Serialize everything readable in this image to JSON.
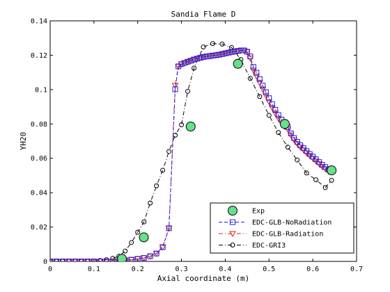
{
  "chart_data": {
    "type": "line",
    "title": "Sandia Flame D",
    "xlabel": "Axial coordinate (m)",
    "ylabel": "YH20",
    "xlim": [
      0,
      0.7
    ],
    "ylim": [
      0,
      0.14
    ],
    "xticks": [
      0,
      0.1,
      0.2,
      0.3,
      0.4,
      0.5,
      0.6,
      0.7
    ],
    "xtick_labels": [
      "0",
      "0.1",
      "0.2",
      "0.3",
      "0.4",
      "0.5",
      "0.6",
      "0.7"
    ],
    "yticks": [
      0,
      0.02,
      0.04,
      0.06,
      0.08,
      0.1,
      0.12,
      0.14
    ],
    "ytick_labels": [
      "0",
      "0.02",
      "0.04",
      "0.06",
      "0.08",
      "0.1",
      "0.12",
      "0.14"
    ],
    "grid": false,
    "legend_position": "bottom-right",
    "series": [
      {
        "name": "Exp",
        "style": "markers-only",
        "marker": "circle-filled",
        "color": "#000000",
        "fill": "#66e08a",
        "x": [
          0.164,
          0.214,
          0.321,
          0.429,
          0.536,
          0.643
        ],
        "y": [
          0.0015,
          0.014,
          0.0785,
          0.115,
          0.08,
          0.053
        ]
      },
      {
        "name": "EDC-GLB-NoRadiation",
        "style": "dashed",
        "marker": "square",
        "color": "#1f1fd8",
        "x": [
          0.0,
          0.0143,
          0.0286,
          0.0429,
          0.0571,
          0.0714,
          0.0857,
          0.1,
          0.1143,
          0.1286,
          0.1429,
          0.1571,
          0.1714,
          0.1857,
          0.2,
          0.2143,
          0.2286,
          0.2429,
          0.2571,
          0.2714,
          0.2857,
          0.2929,
          0.3,
          0.3071,
          0.3143,
          0.3214,
          0.3286,
          0.3357,
          0.3429,
          0.35,
          0.3571,
          0.3643,
          0.3714,
          0.3786,
          0.3857,
          0.3929,
          0.4,
          0.4071,
          0.4143,
          0.4214,
          0.4286,
          0.4357,
          0.4429,
          0.45,
          0.4571,
          0.4643,
          0.4714,
          0.4786,
          0.4857,
          0.4929,
          0.5,
          0.5071,
          0.5143,
          0.5214,
          0.5286,
          0.5357,
          0.5429,
          0.55,
          0.5571,
          0.5643,
          0.5714,
          0.5786,
          0.5857,
          0.5929,
          0.6,
          0.6071,
          0.6143,
          0.6214,
          0.6286,
          0.6357,
          0.6429
        ],
        "y": [
          0.0,
          0.0,
          0.0,
          0.0,
          0.0,
          0.0,
          0.0,
          0.0,
          0.0,
          0.0,
          0.0,
          0.0002,
          0.0006,
          0.001,
          0.0015,
          0.002,
          0.003,
          0.0046,
          0.0083,
          0.0193,
          0.1002,
          0.1135,
          0.1148,
          0.1155,
          0.1162,
          0.1168,
          0.1175,
          0.118,
          0.1185,
          0.119,
          0.1193,
          0.1195,
          0.1198,
          0.12,
          0.1203,
          0.1207,
          0.1211,
          0.1215,
          0.1219,
          0.1222,
          0.1225,
          0.1228,
          0.1228,
          0.122,
          0.1193,
          0.1132,
          0.1098,
          0.1061,
          0.1023,
          0.0985,
          0.095,
          0.0915,
          0.0882,
          0.0852,
          0.0825,
          0.0798,
          0.0782,
          0.0745,
          0.0718,
          0.0696,
          0.0676,
          0.0659,
          0.0642,
          0.0625,
          0.061,
          0.0594,
          0.0578,
          0.0562,
          0.0549,
          0.0535,
          0.0527
        ]
      },
      {
        "name": "EDC-GLB-Radiation",
        "style": "dashdot",
        "marker": "triangle-down",
        "color": "#e81818",
        "x": [
          0.0,
          0.0143,
          0.0286,
          0.0429,
          0.0571,
          0.0714,
          0.0857,
          0.1,
          0.1143,
          0.1286,
          0.1429,
          0.1571,
          0.1714,
          0.1857,
          0.2,
          0.2143,
          0.2286,
          0.2429,
          0.2571,
          0.2714,
          0.2857,
          0.2929,
          0.3,
          0.3071,
          0.3143,
          0.3214,
          0.3286,
          0.3357,
          0.3429,
          0.35,
          0.3571,
          0.3643,
          0.3714,
          0.3786,
          0.3857,
          0.3929,
          0.4,
          0.4071,
          0.4143,
          0.4214,
          0.4286,
          0.4357,
          0.4429,
          0.45,
          0.4571,
          0.4643,
          0.4714,
          0.4786,
          0.4857,
          0.4929,
          0.5,
          0.5071,
          0.5143,
          0.5214,
          0.5286,
          0.5357,
          0.5429,
          0.55,
          0.5571,
          0.5643,
          0.5714,
          0.5786,
          0.5857,
          0.5929,
          0.6,
          0.6071,
          0.6143,
          0.6214,
          0.6286,
          0.6357,
          0.6429
        ],
        "y": [
          0.0,
          0.0,
          0.0,
          0.0,
          0.0,
          0.0,
          0.0,
          0.0,
          0.0,
          0.0,
          0.0,
          0.0002,
          0.0006,
          0.001,
          0.0015,
          0.002,
          0.003,
          0.0046,
          0.0083,
          0.0193,
          0.1024,
          0.1135,
          0.1148,
          0.1155,
          0.1162,
          0.1168,
          0.1175,
          0.118,
          0.1185,
          0.119,
          0.1193,
          0.1195,
          0.1198,
          0.12,
          0.1203,
          0.1207,
          0.1211,
          0.1215,
          0.1219,
          0.1222,
          0.1225,
          0.1228,
          0.1228,
          0.122,
          0.1183,
          0.1112,
          0.1078,
          0.1041,
          0.1003,
          0.0965,
          0.093,
          0.0895,
          0.0862,
          0.0832,
          0.0805,
          0.0785,
          0.077,
          0.0735,
          0.0708,
          0.0686,
          0.0666,
          0.0649,
          0.0632,
          0.0615,
          0.06,
          0.0584,
          0.0568,
          0.0552,
          0.0539,
          0.0525,
          0.0522
        ]
      },
      {
        "name": "EDC-GRI3",
        "style": "dashdot",
        "marker": "circle-open",
        "color": "#000000",
        "x": [
          0.0,
          0.0143,
          0.0286,
          0.0429,
          0.0571,
          0.0714,
          0.0857,
          0.1,
          0.1143,
          0.1286,
          0.1429,
          0.1571,
          0.1714,
          0.1857,
          0.2,
          0.2143,
          0.2286,
          0.2429,
          0.2571,
          0.2714,
          0.2857,
          0.3,
          0.3143,
          0.3286,
          0.35,
          0.3714,
          0.3929,
          0.4143,
          0.4357,
          0.4571,
          0.4786,
          0.5,
          0.5214,
          0.5429,
          0.5643,
          0.5857,
          0.6071,
          0.6286,
          0.6429
        ],
        "y": [
          0.0,
          0.0,
          0.0,
          0.0,
          0.0,
          0.0,
          0.0,
          0.0002,
          0.0005,
          0.001,
          0.0018,
          0.003,
          0.006,
          0.011,
          0.017,
          0.023,
          0.034,
          0.044,
          0.053,
          0.064,
          0.0735,
          0.0795,
          0.099,
          0.1125,
          0.1248,
          0.1268,
          0.1265,
          0.1245,
          0.1175,
          0.1065,
          0.096,
          0.085,
          0.075,
          0.0665,
          0.059,
          0.0515,
          0.0475,
          0.043,
          0.0472
        ]
      }
    ]
  }
}
